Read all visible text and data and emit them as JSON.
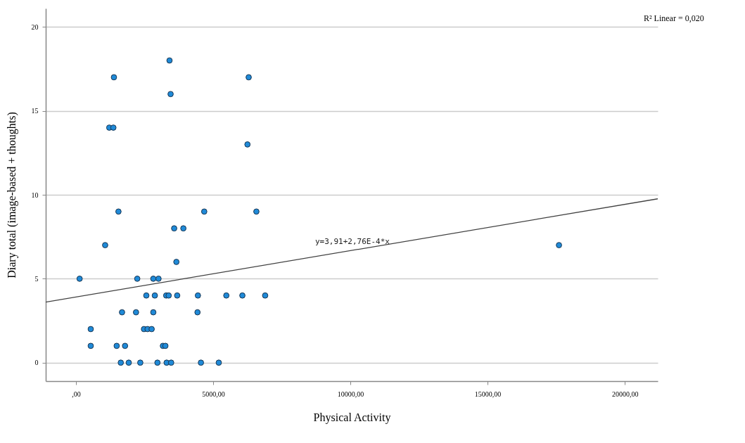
{
  "chart_data": {
    "type": "scatter",
    "xlabel": "Physical Activity",
    "ylabel": "Diary total (image-based + thoughts)",
    "xlim": [
      -1100,
      21200
    ],
    "ylim": [
      -1.1,
      21.1
    ],
    "xticks": [
      {
        "value": 0,
        "label": ",00"
      },
      {
        "value": 5000,
        "label": "5000,00"
      },
      {
        "value": 10000,
        "label": "10000,00"
      },
      {
        "value": 15000,
        "label": "15000,00"
      },
      {
        "value": 20000,
        "label": "20000,00"
      }
    ],
    "yticks": [
      0,
      5,
      10,
      15,
      20
    ],
    "grid": "y",
    "marker": "circle",
    "series": [
      {
        "type": "scatter",
        "color": "#1f8ad8",
        "x": [
          3410,
          1385,
          6295,
          3450,
          1215,
          1365,
          6250,
          1550,
          4675,
          6575,
          3580,
          3915,
          1065,
          3660,
          135,
          2235,
          2820,
          3010,
          2565,
          2875,
          3290,
          3380,
          3690,
          4445,
          5480,
          6065,
          6895,
          1680,
          2190,
          2820,
          4430,
          540,
          2480,
          2610,
          2760,
          540,
          1485,
          1790,
          3170,
          3260,
          1635,
          1925,
          2345,
          2970,
          3305,
          3470,
          4555,
          5205,
          17600
        ],
        "values": [
          18,
          17,
          17,
          16,
          14,
          14,
          13,
          9,
          9,
          9,
          8,
          8,
          7,
          6,
          5,
          5,
          5,
          5,
          4,
          4,
          4,
          4,
          4,
          4,
          4,
          4,
          4,
          3,
          3,
          3,
          3,
          2,
          2,
          2,
          2,
          1,
          1,
          1,
          1,
          1,
          0,
          0,
          0,
          0,
          0,
          0,
          0,
          0,
          7
        ]
      },
      {
        "type": "line",
        "color": "#404040",
        "line_style": "solid",
        "marker": "none",
        "x": [
          -1100,
          21200
        ],
        "values": [
          3.61,
          9.76
        ]
      }
    ],
    "annotations": [
      {
        "text": "y=3,91+2,76E-4*x",
        "x": 10075,
        "y": 6.69
      },
      "R² Linear = 0,020"
    ]
  }
}
